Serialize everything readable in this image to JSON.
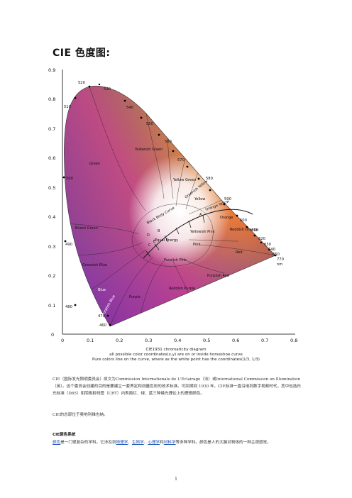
{
  "header": {
    "title": "CIE 色度图:"
  },
  "figure": {
    "y_ticks": [
      "0.9",
      "0.8",
      "0.7",
      "0.6",
      "0.5",
      "0.4",
      "0.3",
      "0.2",
      "0.1",
      "0"
    ],
    "x_ticks": [
      "0",
      "0.1",
      "0.2",
      "0.3",
      "0.4",
      "0.5",
      "0.6",
      "0.7",
      "0.8"
    ],
    "wavelengths": [
      "520",
      "530",
      "510",
      "540",
      "550",
      "560",
      "570",
      "580",
      "590",
      "600",
      "610",
      "620",
      "630",
      "640",
      "650",
      "770",
      "nm",
      "500",
      "490",
      "480",
      "470",
      "460"
    ],
    "regions": [
      "Green",
      "Yellowish Green",
      "Yellow Green",
      "Greenish Yellow",
      "Yellow",
      "Orange Yellow",
      "Orange",
      "Reddish Orange",
      "Red",
      "Bluish Green",
      "Yellowish Pink",
      "Pink",
      "Equal Energy",
      "Purplish Pink",
      "Greenish Blue",
      "Blue",
      "Purplish Blue",
      "Purple",
      "Reddish Purple",
      "Purplish Red",
      "Black Body Curve"
    ],
    "curve_points": [
      "A",
      "B",
      "C",
      "D",
      "E"
    ],
    "colors": {
      "curve": "#111111",
      "dots": "#000000"
    }
  },
  "caption": {
    "line1": "CIE1931 chromaticity diagram",
    "line2": "all possible color coordinates(x,y) are on or inside horseshoe curve",
    "line3": "Pure colors line on the curve, where as the white point has the coordinates(1/3,   1/3)"
  },
  "body": {
    "para1_a": "CIE（国际发光照明委员会）原文为",
    "para1_b": "Commission Internationale de L'Eclairage（法）或",
    "para1_c": "International Commission on Illumination（英）。这个委员会创建的目的是要建立一套界定和测量色彩的技术标准。可回溯到 1930 年，CIE标准一直沿用到数字视频时代，其中包括白光标准（D65）和阴极射线管（CRT）内表面红、绿、蓝三种磷光理论上的理想颜色。",
    "para2": "CIE的总部位于奥地利维也纳。",
    "section_title": "CIE颜色系统",
    "para3_link": "颜色",
    "para3_a": "是一门很复杂的学科，它涉及到",
    "para3_link2": "物理学",
    "para3_sep1": "、",
    "para3_link3": "生物学",
    "para3_sep2": "、",
    "para3_link4": "心理学",
    "para3_b": "和",
    "para3_link5": "材料学",
    "para3_c": "等多种学科。颜色是人的大脑对物体的一种主观感觉。"
  },
  "footer": {
    "page_number": "1"
  }
}
